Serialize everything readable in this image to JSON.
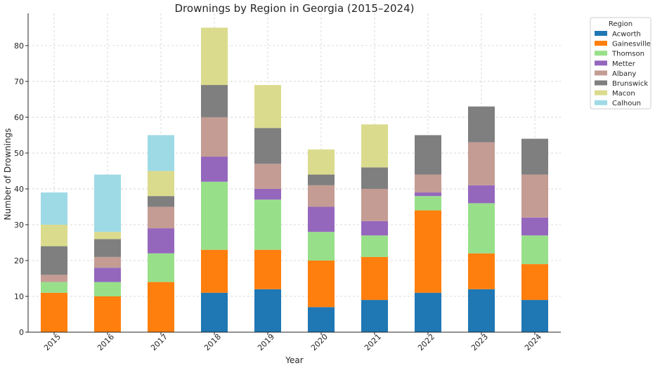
{
  "chart_data": {
    "type": "bar",
    "stacked": true,
    "title": "Drownings by Region in Georgia (2015–2024)",
    "xlabel": "Year",
    "ylabel": "Number of Drownings",
    "categories": [
      "2015",
      "2016",
      "2017",
      "2018",
      "2019",
      "2020",
      "2021",
      "2022",
      "2023",
      "2024"
    ],
    "ylim": [
      0,
      89
    ],
    "yticks": [
      0,
      10,
      20,
      30,
      40,
      50,
      60,
      70,
      80
    ],
    "grid": true,
    "legend": {
      "title": "Region",
      "position": "outside-top-right"
    },
    "series": [
      {
        "name": "Acworth",
        "color": "#1f77b4",
        "values": [
          0,
          0,
          0,
          11,
          12,
          7,
          9,
          11,
          12,
          9
        ]
      },
      {
        "name": "Gainesville",
        "color": "#ff7f0e",
        "values": [
          11,
          10,
          14,
          12,
          11,
          13,
          12,
          23,
          10,
          10
        ]
      },
      {
        "name": "Thomson",
        "color": "#98df8a",
        "values": [
          3,
          4,
          8,
          19,
          14,
          8,
          6,
          4,
          14,
          8
        ]
      },
      {
        "name": "Metter",
        "color": "#9467bd",
        "values": [
          0,
          4,
          7,
          7,
          3,
          7,
          4,
          1,
          5,
          5
        ]
      },
      {
        "name": "Albany",
        "color": "#c49c94",
        "values": [
          2,
          3,
          6,
          11,
          7,
          6,
          9,
          5,
          12,
          12
        ]
      },
      {
        "name": "Brunswick",
        "color": "#7f7f7f",
        "values": [
          8,
          5,
          3,
          9,
          10,
          3,
          6,
          11,
          10,
          10
        ]
      },
      {
        "name": "Macon",
        "color": "#dbdb8d",
        "values": [
          6,
          2,
          7,
          16,
          12,
          7,
          12,
          0,
          0,
          0
        ]
      },
      {
        "name": "Calhoun",
        "color": "#9edae5",
        "values": [
          9,
          16,
          10,
          0,
          0,
          0,
          0,
          0,
          0,
          0
        ]
      }
    ]
  }
}
